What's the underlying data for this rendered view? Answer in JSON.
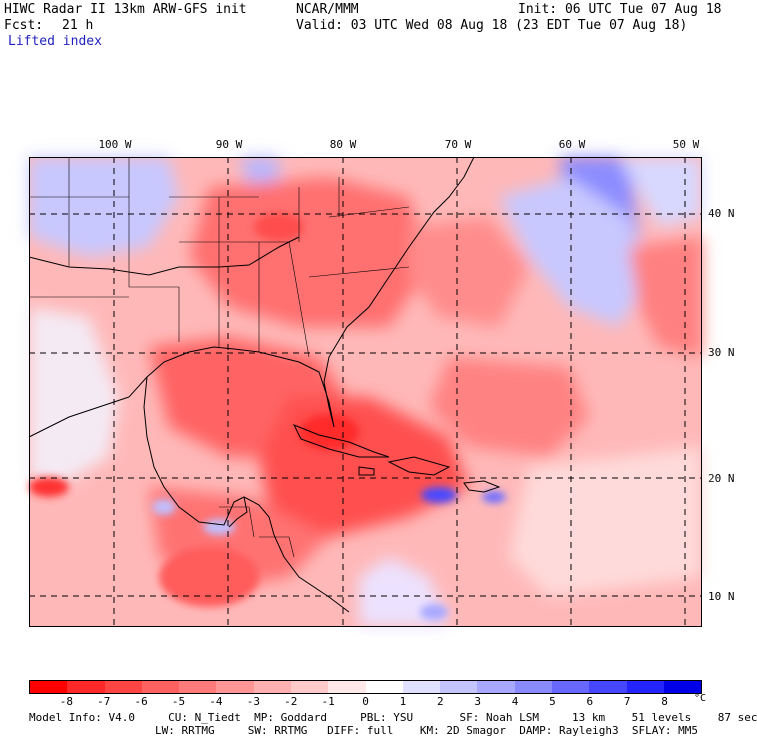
{
  "header": {
    "model_title": "HIWC Radar II 13km ARW-GFS init",
    "org": "NCAR/MMM",
    "init": "Init: 06 UTC Tue 07 Aug 18",
    "fcst_label": "Fcst:",
    "fcst_value": "21 h",
    "valid": "Valid: 03 UTC Wed 08 Aug 18 (23 EDT Tue 07 Aug 18)",
    "field": "Lifted index"
  },
  "map": {
    "longitude_labels": [
      "100 W",
      "90 W",
      "80 W",
      "70 W",
      "60 W",
      "50 W"
    ],
    "latitude_labels": [
      "40 N",
      "30 N",
      "20 N",
      "10 N"
    ],
    "extent": {
      "lon_min": -107.5,
      "lon_max": -48.5,
      "lat_min": 8,
      "lat_max": 44.5
    }
  },
  "colorbar": {
    "tick_labels": [
      "-8",
      "-7",
      "-6",
      "-5",
      "-4",
      "-3",
      "-2",
      "-1",
      "0",
      "1",
      "2",
      "3",
      "4",
      "5",
      "6",
      "7",
      "8"
    ],
    "unit": "°C",
    "colors": [
      "#ff0000",
      "#ff2828",
      "#ff4444",
      "#ff6060",
      "#ff7a7a",
      "#ff9696",
      "#ffb0b0",
      "#ffcaca",
      "#ffe8e8",
      "#ffffff",
      "#e0e0ff",
      "#c4c4ff",
      "#a8a8ff",
      "#8a8aff",
      "#6868ff",
      "#4646ff",
      "#2424ff",
      "#0000e8"
    ]
  },
  "footer": {
    "line1": "Model Info: V4.0     CU: N_Tiedt  MP: Goddard     PBL: YSU       SF: Noah LSM     13 km    51 levels    87 sec",
    "line2": "LW: RRTMG     SW: RRTMG   DIFF: full    KM: 2D Smagor  DAMP: Rayleigh3  SFLAY: MM5"
  }
}
